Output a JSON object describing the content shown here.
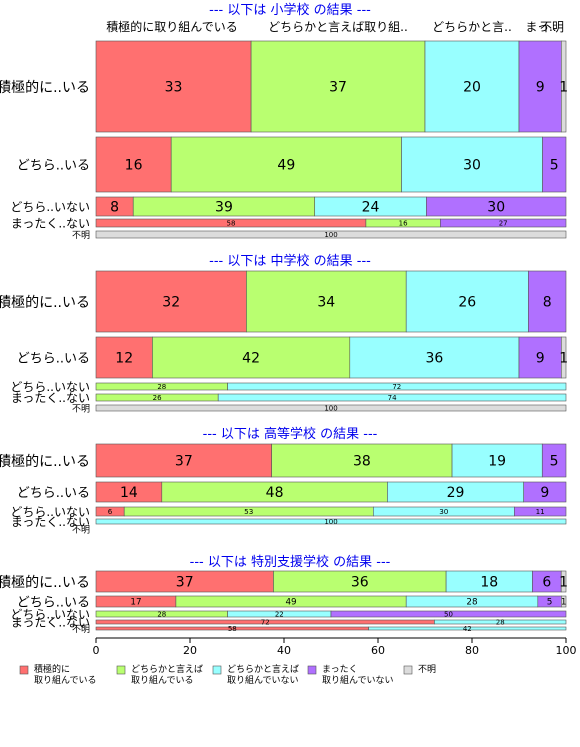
{
  "colors": {
    "positive": "#ff7070",
    "somewhat_positive": "#b9ff70",
    "somewhat_negative": "#98ffff",
    "negative": "#b070ff",
    "unknown": "#dcdcdc",
    "title": "#0000ee",
    "stroke": "#555555"
  },
  "chart_data": {
    "type": "bar",
    "orientation": "horizontal",
    "stacked": true,
    "xlim": [
      0,
      100
    ],
    "xticks": [
      "0",
      "20",
      "40",
      "60",
      "80",
      "100"
    ],
    "grid": false,
    "legend_position": "bottom",
    "column_headers": [
      "積極的に取り組んでいる",
      "どちらかと言えば取り組..",
      "どちらかと言..",
      "まっ..",
      "不明"
    ],
    "series": [
      {
        "name": "積極的に\n取り組んでいる",
        "key": "positive"
      },
      {
        "name": "どちらかと言えば\n取り組んでいる",
        "key": "somewhat_positive"
      },
      {
        "name": "どちらかと言えば\n取り組んでいない",
        "key": "somewhat_negative"
      },
      {
        "name": "まったく\n取り組んでいない",
        "key": "negative"
      },
      {
        "name": "不明",
        "key": "unknown"
      }
    ],
    "panels": [
      {
        "title": "--- 以下は 小学校 の結果 ---",
        "rows": [
          {
            "label": "積極的に..いる",
            "values": [
              33,
              37,
              20,
              9,
              1
            ]
          },
          {
            "label": "どちら..いる",
            "values": [
              16,
              49,
              30,
              5,
              0
            ]
          },
          {
            "label": "どちら..いない",
            "values": [
              8,
              39,
              24,
              30,
              0
            ]
          },
          {
            "label": "まったく..ない",
            "values": [
              58,
              16,
              0,
              27,
              0
            ]
          },
          {
            "label": "不明",
            "values": [
              0,
              0,
              0,
              0,
              100
            ]
          }
        ]
      },
      {
        "title": "--- 以下は 中学校 の結果 ---",
        "rows": [
          {
            "label": "積極的に..いる",
            "values": [
              32,
              34,
              26,
              8,
              0
            ]
          },
          {
            "label": "どちら..いる",
            "values": [
              12,
              42,
              36,
              9,
              1
            ]
          },
          {
            "label": "どちら..いない",
            "values": [
              0,
              28,
              72,
              0,
              0
            ]
          },
          {
            "label": "まったく..ない",
            "values": [
              0,
              26,
              74,
              0,
              0
            ]
          },
          {
            "label": "不明",
            "values": [
              0,
              0,
              0,
              0,
              100
            ]
          }
        ]
      },
      {
        "title": "--- 以下は 高等学校 の結果 ---",
        "rows": [
          {
            "label": "積極的に..いる",
            "values": [
              37,
              38,
              19,
              5,
              0
            ]
          },
          {
            "label": "どちら..いる",
            "values": [
              14,
              48,
              29,
              9,
              0
            ]
          },
          {
            "label": "どちら..いない",
            "values": [
              6,
              53,
              30,
              11,
              0
            ]
          },
          {
            "label": "まったく..ない",
            "values": [
              0,
              0,
              100,
              0,
              0
            ]
          },
          {
            "label": "不明",
            "values": [
              0,
              0,
              0,
              0,
              0
            ]
          }
        ]
      },
      {
        "title": "--- 以下は 特別支援学校 の結果 ---",
        "rows": [
          {
            "label": "積極的に..いる",
            "values": [
              37,
              36,
              18,
              6,
              1
            ]
          },
          {
            "label": "どちら..いる",
            "values": [
              17,
              49,
              28,
              5,
              1
            ]
          },
          {
            "label": "どちら..いない",
            "values": [
              0,
              28,
              22,
              50,
              0
            ]
          },
          {
            "label": "まったく..ない",
            "values": [
              72,
              0,
              28,
              0,
              0
            ]
          },
          {
            "label": "不明",
            "values": [
              58,
              0,
              42,
              0,
              0
            ]
          }
        ]
      }
    ]
  }
}
